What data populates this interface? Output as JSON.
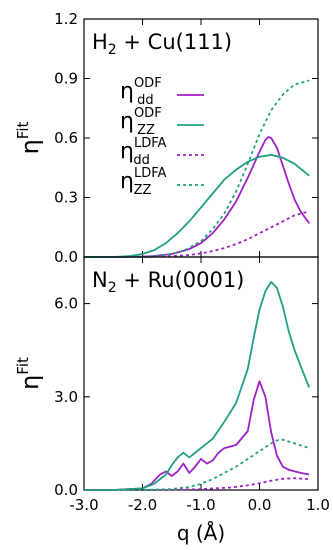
{
  "chart_data": [
    {
      "type": "line",
      "panel_label": {
        "base": "H",
        "sub": "2",
        "rest": " + Cu(111)"
      },
      "ylabel": {
        "base": "η",
        "sup": "Fit"
      },
      "xlim": [
        -3.0,
        1.0
      ],
      "ylim": [
        0.0,
        1.2
      ],
      "yticks": [
        "0.0",
        "0.3",
        "0.6",
        "0.9",
        "1.2"
      ],
      "yticks_values": [
        0.0,
        0.3,
        0.6,
        0.9,
        1.2
      ],
      "legend": {
        "placement": "center-right",
        "entries": [
          {
            "base": "η",
            "sub": "dd",
            "sup": "ODF",
            "color": "#a020c8",
            "dash": "solid"
          },
          {
            "base": "η",
            "sub": "ZZ",
            "sup": "ODF",
            "color": "#20a080",
            "dash": "solid"
          },
          {
            "base": "η",
            "sub": "dd",
            "sup": "LDFA",
            "color": "#a020c8",
            "dash": "dotted"
          },
          {
            "base": "η",
            "sub": "ZZ",
            "sup": "LDFA",
            "color": "#20a080",
            "dash": "dotted"
          }
        ]
      },
      "series": [
        {
          "key": "dd_odf",
          "color": "#a020c8",
          "dash": "solid",
          "x": [
            -3.0,
            -2.5,
            -2.0,
            -1.8,
            -1.5,
            -1.2,
            -1.0,
            -0.8,
            -0.6,
            -0.4,
            -0.2,
            0.0,
            0.1,
            0.15,
            0.2,
            0.3,
            0.4,
            0.5,
            0.6,
            0.7,
            0.85
          ],
          "y": [
            0.0,
            0.0,
            0.002,
            0.005,
            0.015,
            0.04,
            0.07,
            0.12,
            0.19,
            0.28,
            0.4,
            0.53,
            0.59,
            0.605,
            0.6,
            0.55,
            0.46,
            0.37,
            0.29,
            0.23,
            0.17
          ]
        },
        {
          "key": "zz_odf",
          "color": "#20a080",
          "dash": "solid",
          "x": [
            -3.0,
            -2.5,
            -2.2,
            -2.0,
            -1.8,
            -1.6,
            -1.4,
            -1.2,
            -1.0,
            -0.8,
            -0.6,
            -0.4,
            -0.2,
            0.0,
            0.2,
            0.4,
            0.6,
            0.85
          ],
          "y": [
            0.0,
            0.0,
            0.005,
            0.015,
            0.035,
            0.07,
            0.12,
            0.18,
            0.25,
            0.32,
            0.39,
            0.44,
            0.48,
            0.505,
            0.515,
            0.5,
            0.47,
            0.41
          ]
        },
        {
          "key": "dd_ldfa",
          "color": "#a020c8",
          "dash": "dotted",
          "x": [
            -3.0,
            -2.0,
            -1.6,
            -1.2,
            -1.0,
            -0.8,
            -0.6,
            -0.4,
            -0.2,
            0.0,
            0.2,
            0.4,
            0.6,
            0.85
          ],
          "y": [
            0.0,
            0.0,
            0.003,
            0.01,
            0.018,
            0.03,
            0.045,
            0.065,
            0.09,
            0.12,
            0.15,
            0.18,
            0.21,
            0.23
          ]
        },
        {
          "key": "zz_ldfa",
          "color": "#20a080",
          "dash": "dotted",
          "x": [
            -3.0,
            -2.0,
            -1.6,
            -1.3,
            -1.0,
            -0.8,
            -0.6,
            -0.4,
            -0.2,
            0.0,
            0.2,
            0.4,
            0.6,
            0.85
          ],
          "y": [
            0.0,
            0.0,
            0.01,
            0.03,
            0.08,
            0.14,
            0.22,
            0.33,
            0.47,
            0.62,
            0.74,
            0.82,
            0.87,
            0.89
          ]
        }
      ]
    },
    {
      "type": "line",
      "panel_label": {
        "base": "N",
        "sub": "2",
        "rest": " + Ru(0001)"
      },
      "ylabel": {
        "base": "η",
        "sup": "Fit"
      },
      "xlabel": "q (Å)",
      "xlim": [
        -3.0,
        1.0
      ],
      "ylim": [
        0.0,
        7.5
      ],
      "xticks": [
        "-3.0",
        "-2.0",
        "-1.0",
        "0.0",
        "1.0"
      ],
      "xticks_values": [
        -3.0,
        -2.0,
        -1.0,
        0.0,
        1.0
      ],
      "yticks": [
        "0.0",
        "3.0",
        "6.0"
      ],
      "yticks_values": [
        0.0,
        3.0,
        6.0
      ],
      "series": [
        {
          "key": "dd_odf",
          "color": "#a020c8",
          "dash": "solid",
          "x": [
            -3.0,
            -2.5,
            -2.0,
            -1.85,
            -1.7,
            -1.6,
            -1.5,
            -1.4,
            -1.3,
            -1.2,
            -1.1,
            -1.0,
            -0.9,
            -0.8,
            -0.7,
            -0.6,
            -0.4,
            -0.2,
            -0.1,
            0.0,
            0.1,
            0.2,
            0.3,
            0.4,
            0.5,
            0.6,
            0.7,
            0.85
          ],
          "y": [
            0.0,
            0.0,
            0.05,
            0.2,
            0.5,
            0.6,
            0.45,
            0.6,
            0.85,
            0.55,
            0.75,
            1.0,
            0.85,
            0.95,
            1.2,
            1.35,
            1.45,
            1.9,
            2.9,
            3.5,
            3.0,
            1.85,
            1.1,
            0.75,
            0.65,
            0.6,
            0.55,
            0.5
          ]
        },
        {
          "key": "zz_odf",
          "color": "#20a080",
          "dash": "solid",
          "x": [
            -3.0,
            -2.5,
            -2.0,
            -1.8,
            -1.6,
            -1.5,
            -1.4,
            -1.3,
            -1.2,
            -1.0,
            -0.8,
            -0.6,
            -0.4,
            -0.2,
            -0.1,
            0.0,
            0.1,
            0.2,
            0.3,
            0.4,
            0.5,
            0.6,
            0.7,
            0.85
          ],
          "y": [
            0.0,
            0.0,
            0.05,
            0.2,
            0.5,
            0.8,
            1.05,
            1.2,
            1.05,
            1.35,
            1.65,
            2.2,
            2.8,
            3.9,
            4.9,
            5.8,
            6.4,
            6.7,
            6.5,
            5.9,
            5.1,
            4.5,
            4.0,
            3.3
          ]
        },
        {
          "key": "dd_ldfa",
          "color": "#a020c8",
          "dash": "dotted",
          "x": [
            -3.0,
            -2.0,
            -1.5,
            -1.0,
            -0.5,
            -0.2,
            0.0,
            0.2,
            0.4,
            0.6,
            0.85
          ],
          "y": [
            0.0,
            0.0,
            0.01,
            0.03,
            0.08,
            0.15,
            0.22,
            0.3,
            0.36,
            0.38,
            0.35
          ]
        },
        {
          "key": "zz_ldfa",
          "color": "#20a080",
          "dash": "dotted",
          "x": [
            -3.0,
            -2.0,
            -1.5,
            -1.2,
            -1.0,
            -0.8,
            -0.6,
            -0.4,
            -0.2,
            0.0,
            0.2,
            0.3,
            0.4,
            0.6,
            0.85
          ],
          "y": [
            0.0,
            0.0,
            0.03,
            0.1,
            0.2,
            0.35,
            0.55,
            0.75,
            1.0,
            1.25,
            1.5,
            1.6,
            1.62,
            1.5,
            1.35
          ]
        }
      ]
    }
  ]
}
